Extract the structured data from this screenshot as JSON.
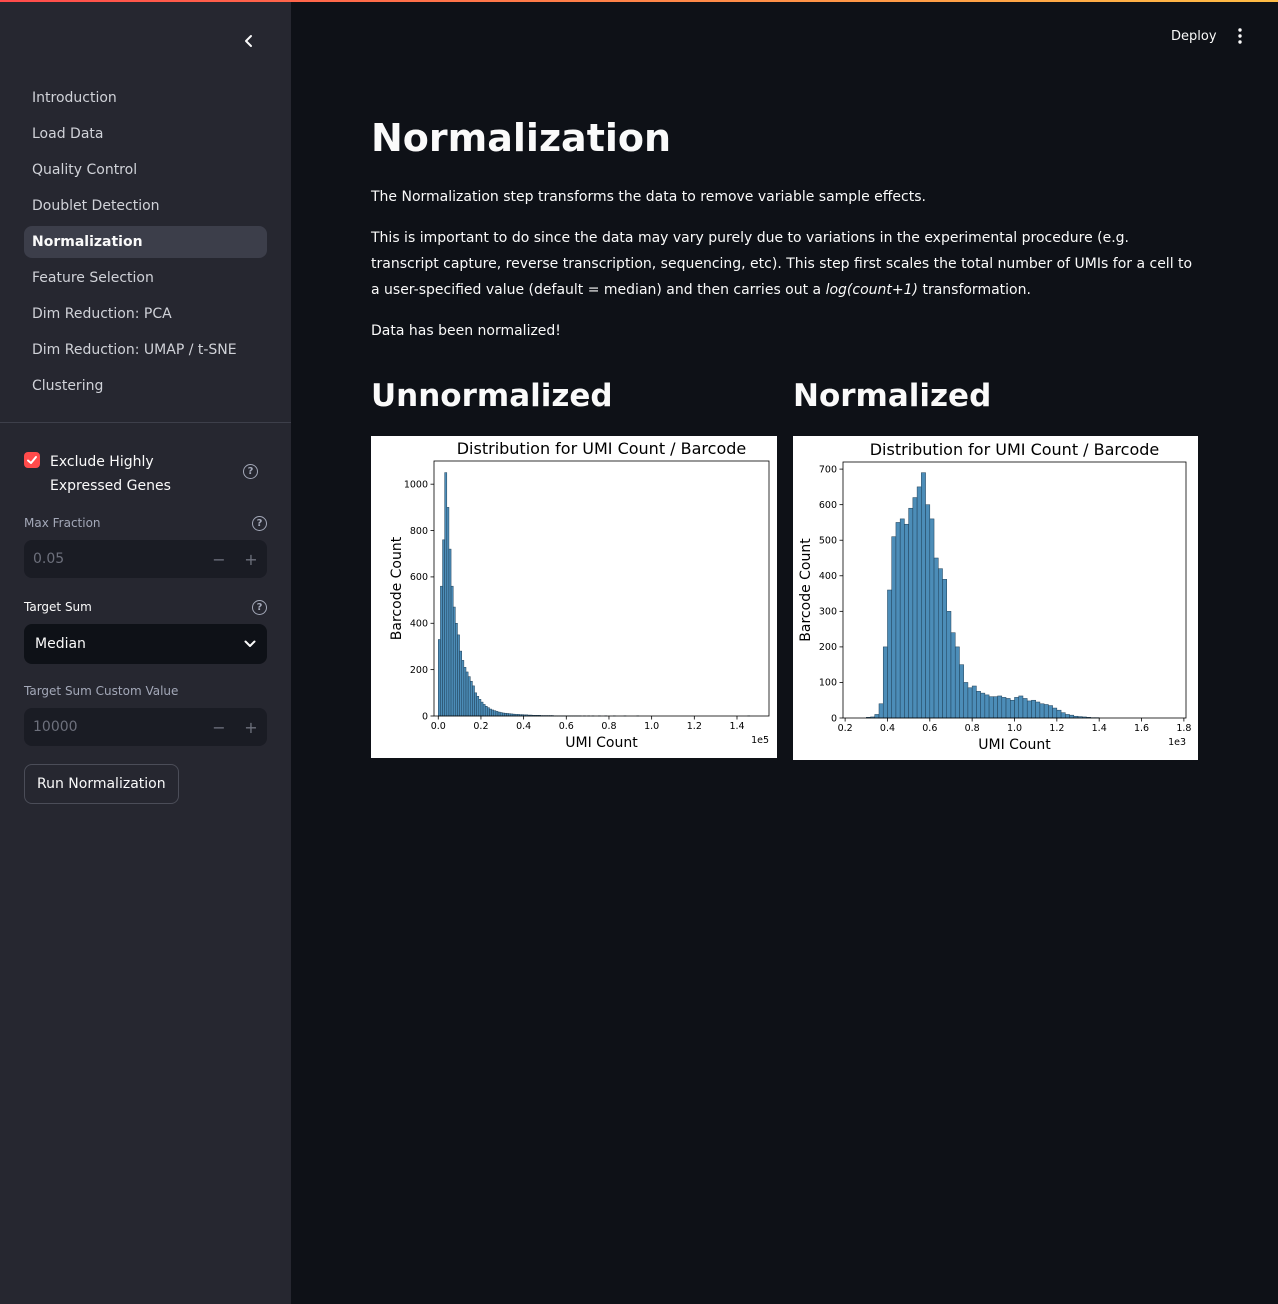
{
  "sidebar": {
    "nav": [
      {
        "label": "Introduction",
        "name": "nav-introduction"
      },
      {
        "label": "Load Data",
        "name": "nav-load-data"
      },
      {
        "label": "Quality Control",
        "name": "nav-quality-control"
      },
      {
        "label": "Doublet Detection",
        "name": "nav-doublet-detection"
      },
      {
        "label": "Normalization",
        "name": "nav-normalization",
        "active": true
      },
      {
        "label": "Feature Selection",
        "name": "nav-feature-selection"
      },
      {
        "label": "Dim Reduction: PCA",
        "name": "nav-dim-reduction-pca"
      },
      {
        "label": "Dim Reduction: UMAP / t-SNE",
        "name": "nav-dim-reduction-umap-tsne"
      },
      {
        "label": "Clustering",
        "name": "nav-clustering"
      }
    ],
    "exclude_checkbox": {
      "label": "Exclude Highly Expressed Genes",
      "checked": true
    },
    "max_fraction": {
      "label": "Max Fraction",
      "value": "0.05"
    },
    "target_sum": {
      "label": "Target Sum",
      "selected": "Median"
    },
    "custom_value": {
      "label": "Target Sum Custom Value",
      "value": "10000"
    },
    "run_button": "Run Normalization"
  },
  "header": {
    "deploy": "Deploy"
  },
  "main": {
    "title": "Normalization",
    "intro": "The Normalization step transforms the data to remove variable sample effects.",
    "para_before": "This is important to do since the data may vary purely due to variations in the experimental procedure (e.g. transcript capture, reverse transcription, sequencing, etc). This step first scales the total number of UMIs for a cell to a user-specified value (default = median) and then carries out a ",
    "para_italic": "log(count+1)",
    "para_after": " transformation.",
    "status": "Data has been normalized!",
    "left_heading": "Unnormalized",
    "right_heading": "Normalized"
  },
  "colors": {
    "accent": "#ff4b4b",
    "bar_fill": "#4c8db8",
    "bar_edge": "#1f3f57"
  },
  "chart_data": [
    {
      "type": "bar",
      "title": "Distribution for UMI Count / Barcode",
      "xlabel": "UMI Count",
      "ylabel": "Barcode Count",
      "x_offset_text": "1e5",
      "xlim": [
        -0.02,
        1.55
      ],
      "ylim": [
        0,
        1100
      ],
      "xticks": [
        "0.0",
        "0.2",
        "0.4",
        "0.6",
        "0.8",
        "1.0",
        "1.2",
        "1.4"
      ],
      "yticks": [
        "0",
        "200",
        "400",
        "600",
        "800",
        "1000"
      ],
      "bin_width": 0.01,
      "bin_start": 0.0,
      "values": [
        330,
        560,
        760,
        1050,
        900,
        720,
        560,
        470,
        400,
        350,
        280,
        240,
        210,
        190,
        170,
        150,
        130,
        100,
        85,
        72,
        60,
        50,
        42,
        36,
        30,
        26,
        23,
        20,
        17,
        15,
        13,
        12,
        11,
        10,
        9,
        8,
        7,
        7,
        6,
        6,
        5,
        5,
        4,
        4,
        3,
        3,
        3,
        3,
        2,
        2,
        2,
        2,
        2,
        2,
        1,
        1,
        1,
        1,
        1,
        1,
        1,
        1,
        1,
        1,
        1,
        1,
        1,
        0,
        1,
        0,
        1,
        0,
        1,
        0,
        0,
        1,
        0,
        0,
        1,
        0,
        0,
        0,
        1,
        0,
        0,
        0,
        0,
        1,
        0,
        0,
        0,
        0,
        0,
        1,
        0,
        0,
        0,
        0,
        0,
        0,
        0,
        0,
        0,
        0,
        0,
        0,
        0,
        0,
        0,
        0,
        0,
        0,
        0,
        0,
        0,
        0,
        0,
        0,
        0,
        0,
        0,
        0,
        0,
        0,
        0,
        0,
        0,
        0,
        0,
        0,
        0,
        0,
        0,
        0,
        0,
        0,
        0,
        0,
        0,
        0,
        0,
        0,
        0,
        0,
        0,
        1
      ]
    },
    {
      "type": "bar",
      "title": "Distribution for UMI Count / Barcode",
      "xlabel": "UMI Count",
      "ylabel": "Barcode Count",
      "x_offset_text": "1e3",
      "xlim": [
        0.19,
        1.81
      ],
      "ylim": [
        0,
        720
      ],
      "xticks": [
        "0.2",
        "0.4",
        "0.6",
        "0.8",
        "1.0",
        "1.2",
        "1.4",
        "1.6",
        "1.8"
      ],
      "yticks": [
        "0",
        "100",
        "200",
        "300",
        "400",
        "500",
        "600",
        "700"
      ],
      "bin_width": 0.02,
      "bin_start": 0.3,
      "values": [
        2,
        3,
        10,
        40,
        200,
        360,
        510,
        550,
        560,
        545,
        590,
        620,
        650,
        690,
        600,
        560,
        450,
        420,
        390,
        300,
        240,
        200,
        150,
        100,
        85,
        90,
        75,
        70,
        65,
        60,
        60,
        62,
        58,
        55,
        50,
        58,
        62,
        55,
        48,
        50,
        45,
        40,
        38,
        35,
        28,
        22,
        15,
        10,
        8,
        5,
        4,
        3,
        2,
        1,
        1
      ]
    }
  ]
}
